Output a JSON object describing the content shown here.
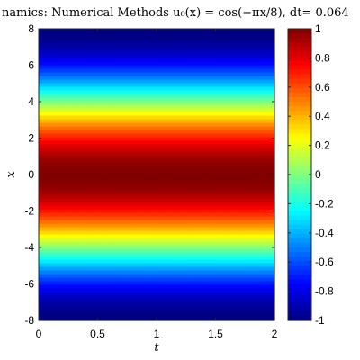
{
  "chart_data": {
    "type": "heatmap",
    "title": "namics: Numerical Methods u₀(x) = cos(−πx/8), dt= 0.064",
    "xlabel": "t",
    "ylabel": "x",
    "xlim": [
      0,
      2
    ],
    "ylim": [
      -8,
      8
    ],
    "x_ticks": [
      "0",
      "0.5",
      "1",
      "1.5",
      "2"
    ],
    "y_ticks": [
      "-8",
      "-6",
      "-4",
      "-2",
      "0",
      "2",
      "4",
      "6",
      "8"
    ],
    "colorbar": {
      "limits": [
        -1,
        1
      ],
      "ticks": [
        "-1",
        "-0.8",
        "-0.6",
        "-0.4",
        "-0.2",
        "0",
        "0.2",
        "0.4",
        "0.6",
        "0.8",
        "1"
      ],
      "colormap": "jet"
    },
    "field": {
      "function": "u(x,t) = cos(-pi*x/8)",
      "t_range": [
        0,
        2
      ],
      "x_range": [
        -8,
        8
      ],
      "grid": [
        31,
        81
      ]
    }
  }
}
